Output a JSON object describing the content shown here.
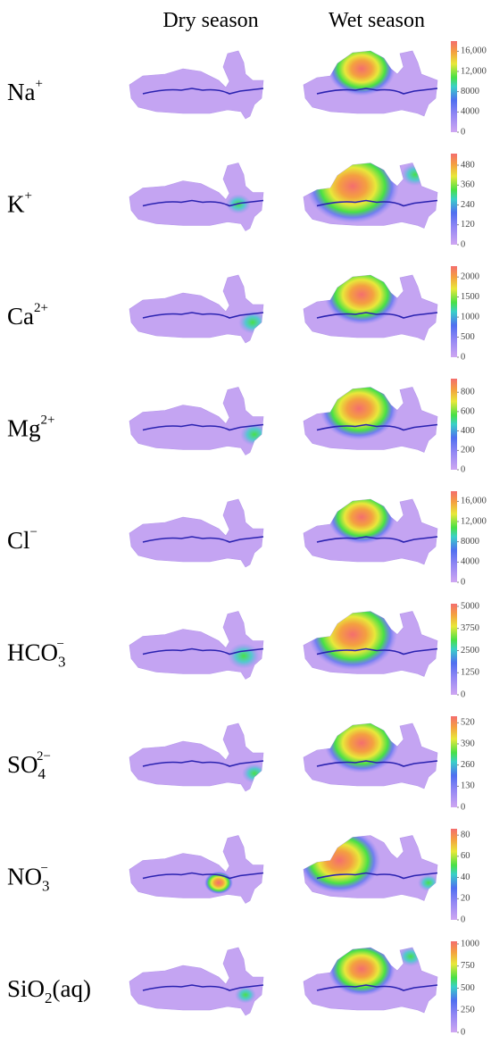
{
  "column_headers": [
    "Dry season",
    "Wet season"
  ],
  "rows": [
    {
      "label": {
        "base": "Na",
        "sup": "+"
      },
      "colorbar": {
        "lim": [
          0,
          18000
        ],
        "ticks": [
          0,
          4000,
          8000,
          {
            "value": 12000,
            "label": "12,000"
          },
          {
            "value": 16000,
            "label": "16,000"
          }
        ]
      }
    },
    {
      "label": {
        "base": "K",
        "sup": "+"
      },
      "colorbar": {
        "lim": [
          0,
          550
        ],
        "ticks": [
          0,
          120,
          240,
          360,
          480
        ]
      }
    },
    {
      "label": {
        "base": "Ca",
        "sup": "2+"
      },
      "colorbar": {
        "lim": [
          0,
          2270
        ],
        "ticks": [
          0,
          500,
          1000,
          1500,
          2000
        ]
      }
    },
    {
      "label": {
        "base": "Mg",
        "sup": "2+"
      },
      "colorbar": {
        "lim": [
          0,
          940
        ],
        "ticks": [
          0,
          200,
          400,
          600,
          800
        ]
      }
    },
    {
      "label": {
        "base": "Cl",
        "sup": "−"
      },
      "colorbar": {
        "lim": [
          0,
          18000
        ],
        "ticks": [
          0,
          4000,
          8000,
          {
            "value": 12000,
            "label": "12,000"
          },
          {
            "value": 16000,
            "label": "16,000"
          }
        ]
      }
    },
    {
      "label": {
        "base": "HCO",
        "sub": "3",
        "sup": "−"
      },
      "colorbar": {
        "lim": [
          0,
          5150
        ],
        "ticks": [
          0,
          1250,
          2500,
          3750,
          5000
        ]
      }
    },
    {
      "label": {
        "base": "SO",
        "sub": "4",
        "sup": "2−"
      },
      "colorbar": {
        "lim": [
          0,
          560
        ],
        "ticks": [
          0,
          130,
          260,
          390,
          520
        ]
      }
    },
    {
      "label": {
        "base": "NO",
        "sub": "3",
        "sup": "−"
      },
      "colorbar": {
        "lim": [
          0,
          86
        ],
        "ticks": [
          0,
          20,
          40,
          60,
          80
        ]
      }
    },
    {
      "label": {
        "base": "SiO",
        "sub": "2",
        "tail": "(aq)"
      },
      "colorbar": {
        "lim": [
          0,
          1030
        ],
        "ticks": [
          0,
          250,
          500,
          750,
          1000
        ]
      }
    }
  ]
}
